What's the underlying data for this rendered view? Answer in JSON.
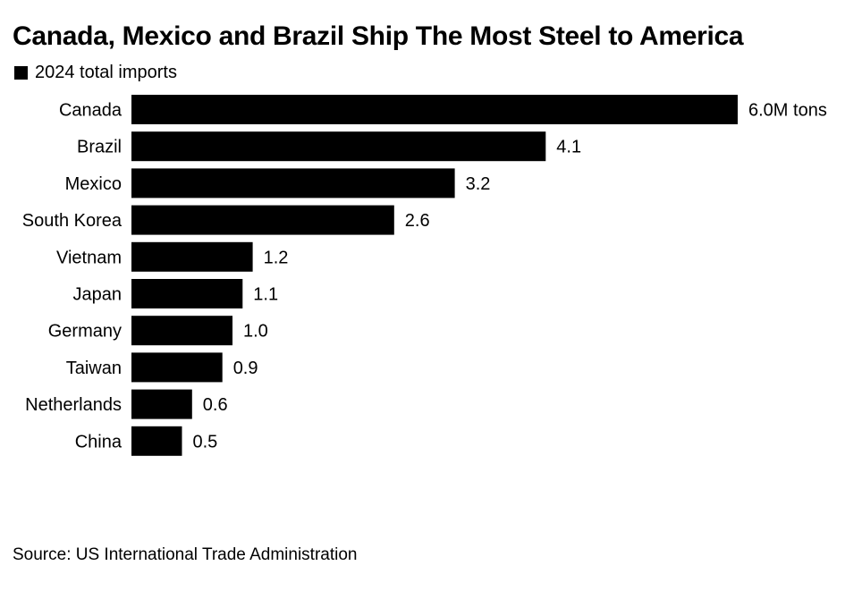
{
  "title": "Canada, Mexico and Brazil Ship The Most Steel to America",
  "legend": {
    "label": "2024 total imports",
    "color": "#000000"
  },
  "source": "Source: US International Trade Administration",
  "chart_data": {
    "type": "bar",
    "orientation": "horizontal",
    "title": "Canada, Mexico and Brazil Ship The Most Steel to America",
    "categories": [
      "Canada",
      "Brazil",
      "Mexico",
      "South Korea",
      "Vietnam",
      "Japan",
      "Germany",
      "Taiwan",
      "Netherlands",
      "China"
    ],
    "series": [
      {
        "name": "2024 total imports",
        "values": [
          6.0,
          4.1,
          3.2,
          2.6,
          1.2,
          1.1,
          1.0,
          0.9,
          0.6,
          0.5
        ],
        "labels": [
          "6.0M tons",
          "4.1",
          "3.2",
          "2.6",
          "1.2",
          "1.1",
          "1.0",
          "0.9",
          "0.6",
          "0.5"
        ],
        "color": "#000000"
      }
    ],
    "xlim": [
      0,
      6.0
    ],
    "grid": false,
    "legend_position": "top-left"
  }
}
